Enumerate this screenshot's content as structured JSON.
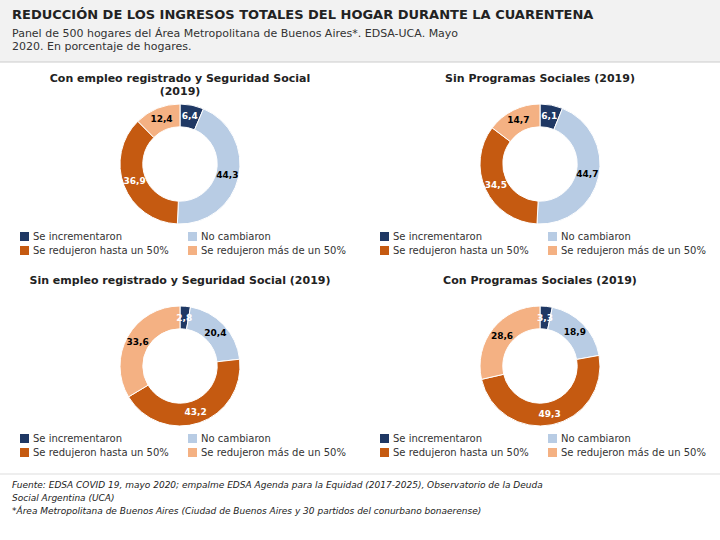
{
  "title": "REDUCCIÓN DE LOS INGRESOS TOTALES DEL HOGAR DURANTE LA CUARENTENA",
  "subtitle": "Panel de 500 hogares del Área Metropolitana de Buenos Aires*. EDSA-UCA. Mayo\n2020. En porcentaje de hogares.",
  "annotations": [
    "Fuente: EDSA COVID 19, mayo 2020; empalme EDSA Agenda para la Equidad (2017-2025), Observatorio de la Deuda",
    "Social Argentina (UCA)",
    "*Área Metropolitana de Buenos Aires (Ciudad de Buenos Aires y 30 partidos del conurbano bonaerense)"
  ],
  "chart_data": [
    {
      "type": "pie",
      "title": "Con empleo registrado y Seguridad Social\n(2019)",
      "categories": [
        "Se incrementaron",
        "No cambiaron",
        "Se redujeron hasta un 50%",
        "Se redujeron más de un 50%"
      ],
      "values": [
        6.4,
        44.3,
        36.9,
        12.4
      ],
      "value_labels": [
        "6,4",
        "44,3",
        "36,9",
        "12,4"
      ],
      "colors": [
        "#1f3864",
        "#b8cce4",
        "#c55a11",
        "#f4b183"
      ],
      "data_labels": true,
      "legend": "bottom"
    },
    {
      "type": "pie",
      "title": "Sin Programas Sociales (2019)",
      "categories": [
        "Se incrementaron",
        "No cambiaron",
        "Se redujeron hasta un 50%",
        "Se redujeron más de un 50%"
      ],
      "values": [
        6.1,
        44.7,
        34.5,
        14.7
      ],
      "value_labels": [
        "6,1",
        "44,7",
        "34,5",
        "14,7"
      ],
      "colors": [
        "#1f3864",
        "#b8cce4",
        "#c55a11",
        "#f4b183"
      ],
      "data_labels": true,
      "legend": "bottom"
    },
    {
      "type": "pie",
      "title": "Sin empleo registrado y Seguridad Social (2019)",
      "categories": [
        "Se incrementaron",
        "No cambiaron",
        "Se redujeron hasta un 50%",
        "Se redujeron más de un 50%"
      ],
      "values": [
        2.8,
        20.4,
        43.2,
        33.6
      ],
      "value_labels": [
        "2,8",
        "20,4",
        "43,2",
        "33,6"
      ],
      "colors": [
        "#1f3864",
        "#b8cce4",
        "#c55a11",
        "#f4b183"
      ],
      "data_labels": true,
      "legend": "bottom"
    },
    {
      "type": "pie",
      "title": "Con Programas Sociales (2019)",
      "categories": [
        "Se incrementaron",
        "No cambiaron",
        "Se redujeron hasta un 50%",
        "Se redujeron más de un 50%"
      ],
      "values": [
        3.3,
        18.9,
        49.3,
        28.6
      ],
      "value_labels": [
        "3,3",
        "18,9",
        "49,3",
        "28,6"
      ],
      "colors": [
        "#1f3864",
        "#b8cce4",
        "#c55a11",
        "#f4b183"
      ],
      "data_labels": true,
      "legend": "bottom"
    }
  ]
}
